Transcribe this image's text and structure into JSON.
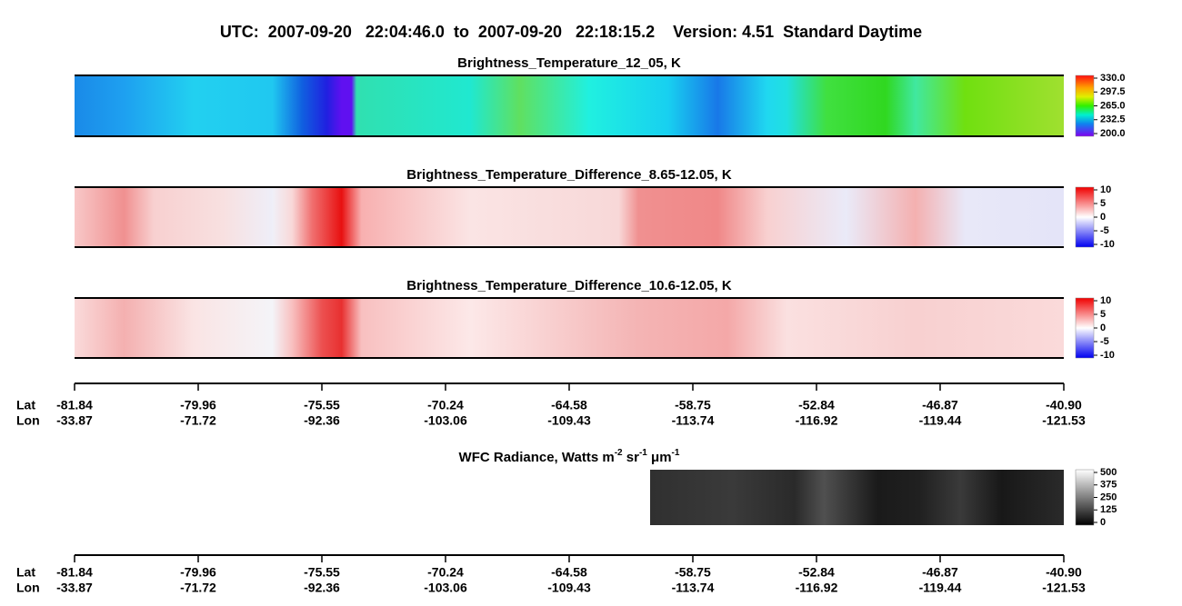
{
  "title": "UTC:  2007-09-20   22:04:46.0  to  2007-09-20   22:18:15.2    Version: 4.51  Standard Daytime",
  "panels": [
    {
      "title": "Brightness_Temperature_12_05, K",
      "colorbar_ticks": [
        {
          "value": 330,
          "label": "330.0"
        },
        {
          "value": 297.5,
          "label": "297.5"
        },
        {
          "value": 265,
          "label": "265.0"
        },
        {
          "value": 232.5,
          "label": "232.5"
        },
        {
          "value": 200,
          "label": "200.0"
        }
      ]
    },
    {
      "title": "Brightness_Temperature_Difference_8.65-12.05, K",
      "colorbar_ticks": [
        10,
        5,
        0,
        -5,
        -10
      ]
    },
    {
      "title": "Brightness_Temperature_Difference_10.6-12.05, K",
      "colorbar_ticks": [
        10,
        5,
        0,
        -5,
        -10
      ]
    },
    {
      "title_parts": [
        "WFC Radiance, Watts m",
        "-2",
        " sr",
        "-1",
        " μm",
        "-1"
      ],
      "colorbar_ticks": [
        500,
        375,
        250,
        125,
        0
      ]
    }
  ],
  "axis": {
    "row_labels": [
      "Lat",
      "Lon"
    ],
    "lat": [
      "-81.84",
      "-79.96",
      "-75.55",
      "-70.24",
      "-64.58",
      "-58.75",
      "-52.84",
      "-46.87",
      "-40.90"
    ],
    "lon": [
      "-33.87",
      "-71.72",
      "-92.36",
      "-103.06",
      "-109.43",
      "-113.74",
      "-116.92",
      "-119.44",
      "-121.53"
    ]
  }
}
